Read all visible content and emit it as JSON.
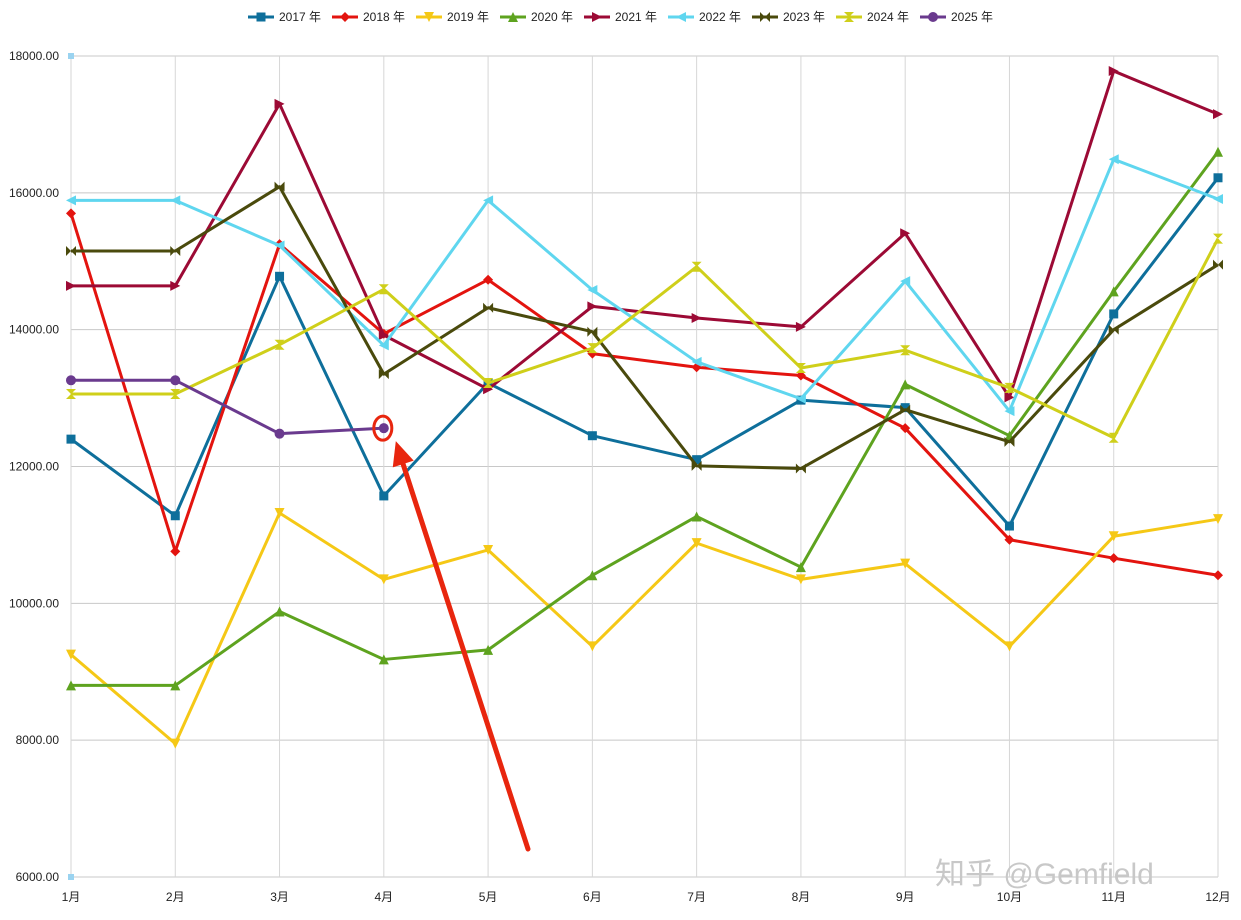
{
  "chart_data": {
    "type": "line",
    "title": "",
    "xlabel": "",
    "ylabel": "",
    "categories": [
      "1月",
      "2月",
      "3月",
      "4月",
      "5月",
      "6月",
      "7月",
      "8月",
      "9月",
      "10月",
      "11月",
      "12月"
    ],
    "ylim": [
      6000,
      18000
    ],
    "yticks": [
      6000,
      8000,
      10000,
      12000,
      14000,
      16000,
      18000
    ],
    "ytick_labels": [
      "6000.00",
      "8000.00",
      "10000.00",
      "12000.00",
      "14000.00",
      "16000.00",
      "18000.00"
    ],
    "grid": true,
    "legend_position": "top-center",
    "series": [
      {
        "name": "2017 年",
        "color": "#0e6f9b",
        "marker": "square",
        "values": [
          12400,
          11280,
          14780,
          11570,
          13220,
          12450,
          12100,
          12970,
          12860,
          11130,
          14230,
          16220
        ]
      },
      {
        "name": "2018 年",
        "color": "#e3140f",
        "marker": "diamond",
        "values": [
          15700,
          10760,
          15250,
          13940,
          14730,
          13650,
          13450,
          13330,
          12560,
          10930,
          10660,
          10410
        ]
      },
      {
        "name": "2019 年",
        "color": "#f5c816",
        "marker": "triangle-down",
        "values": [
          9250,
          7950,
          11320,
          10350,
          10780,
          9370,
          10880,
          10350,
          10580,
          9370,
          10980,
          11230
        ]
      },
      {
        "name": "2020 年",
        "color": "#5ea31f",
        "marker": "triangle-up",
        "values": [
          8800,
          8800,
          9880,
          9180,
          9320,
          10410,
          11270,
          10530,
          13200,
          12450,
          14560,
          16600
        ]
      },
      {
        "name": "2021 年",
        "color": "#9c0a35",
        "marker": "triangle-right",
        "values": [
          14640,
          14640,
          17300,
          13920,
          13130,
          14340,
          14170,
          14040,
          15410,
          13010,
          17780,
          17150
        ]
      },
      {
        "name": "2022 年",
        "color": "#5fd6ef",
        "marker": "triangle-left",
        "values": [
          15890,
          15890,
          15230,
          13770,
          15890,
          14580,
          13530,
          12990,
          14710,
          12810,
          16490,
          15910
        ]
      },
      {
        "name": "2023 年",
        "color": "#4a4a0c",
        "marker": "bowtie",
        "values": [
          15150,
          15150,
          16090,
          13350,
          14320,
          13970,
          12010,
          11970,
          12830,
          12360,
          14000,
          14950
        ]
      },
      {
        "name": "2024 年",
        "color": "#cfcf1a",
        "marker": "hourglass",
        "values": [
          13060,
          13060,
          13780,
          14590,
          13220,
          13730,
          14920,
          13440,
          13700,
          13150,
          12420,
          15330
        ]
      },
      {
        "name": "2025 年",
        "color": "#6a3a8e",
        "marker": "circle",
        "values": [
          13260,
          13260,
          12480,
          12560,
          null,
          null,
          null,
          null,
          null,
          null,
          null,
          null
        ]
      }
    ],
    "annotations": [
      {
        "type": "circle-highlight",
        "series": "2025 年",
        "category": "4月",
        "color": "#e8260e"
      },
      {
        "type": "arrow",
        "target_series": "2025 年",
        "target_category": "4月",
        "color": "#e8260e"
      }
    ]
  },
  "watermark": "知乎 @Gemfield"
}
